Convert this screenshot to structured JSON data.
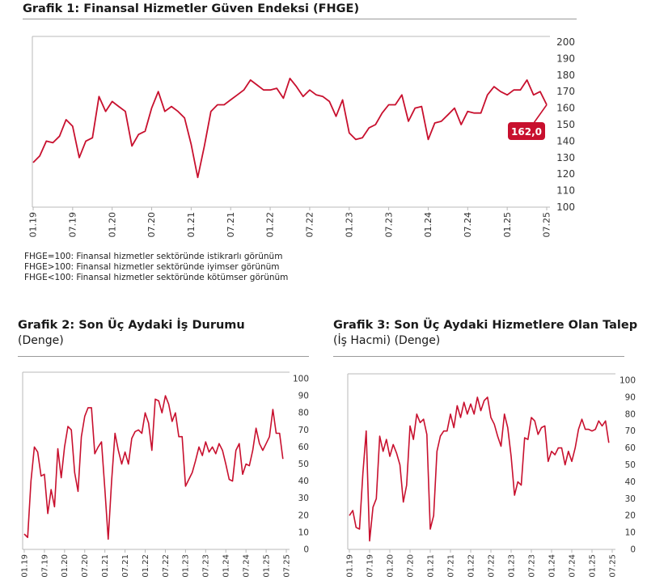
{
  "chart_data": [
    {
      "id": "fhge",
      "type": "line",
      "title": "Grafik 1: Finansal Hizmetler Güven Endeksi (FHGE)",
      "subtitle": "",
      "ylim": [
        100,
        200
      ],
      "yticks": [
        100,
        110,
        120,
        130,
        140,
        150,
        160,
        170,
        180,
        190,
        200
      ],
      "xtick_labels": [
        "01.19",
        "07.19",
        "01.20",
        "07.20",
        "01.21",
        "07.21",
        "01.22",
        "07.22",
        "01.23",
        "07.23",
        "01.24",
        "07.24",
        "01.25",
        "07.25"
      ],
      "x_period_months": 78,
      "grid": false,
      "line_color": "#c8102e",
      "series": [
        {
          "name": "",
          "values": [
            127,
            131,
            140,
            139,
            143,
            153,
            149,
            130,
            140,
            142,
            167,
            158,
            164,
            161,
            158,
            137,
            144,
            146,
            160,
            170,
            158,
            161,
            158,
            154,
            138,
            118,
            137,
            158,
            162,
            162,
            165,
            168,
            171,
            177,
            174,
            171,
            171,
            172,
            166,
            178,
            173,
            167,
            171,
            168,
            167,
            164,
            155,
            165,
            145,
            141,
            142,
            148,
            150,
            157,
            162,
            162,
            168,
            152,
            160,
            161,
            141,
            151,
            152,
            156,
            160,
            150,
            158,
            157,
            157,
            168,
            173,
            170,
            168,
            171,
            171,
            177,
            168,
            170,
            162
          ]
        }
      ],
      "last_value_label": "162,0",
      "notes": [
        "FHGE=100: Finansal hizmetler sektöründe istikrarlı görünüm",
        "FHGE>100: Finansal hizmetler sektöründe iyimser görünüm",
        "FHGE<100: Finansal hizmetler sektöründe kötümser görünüm"
      ]
    },
    {
      "id": "is-durumu",
      "type": "line",
      "title": "Grafik 2: Son Üç Aydaki İş Durumu",
      "subtitle": "(Denge)",
      "ylim": [
        0,
        100
      ],
      "yticks": [
        0,
        10,
        20,
        30,
        40,
        50,
        60,
        70,
        80,
        90,
        100
      ],
      "xtick_labels": [
        "01.19",
        "07.19",
        "01.20",
        "07.20",
        "01.21",
        "07.21",
        "01.22",
        "07.22",
        "01.23",
        "07.23",
        "01.24",
        "07.24",
        "01.25",
        "07.25"
      ],
      "x_period_months": 78,
      "grid": false,
      "line_color": "#c8102e",
      "series": [
        {
          "name": "",
          "values": [
            9,
            7,
            40,
            60,
            57,
            43,
            44,
            21,
            35,
            25,
            59,
            42,
            60,
            72,
            70,
            45,
            34,
            66,
            78,
            83,
            83,
            56,
            60,
            63,
            35,
            6,
            40,
            68,
            58,
            50,
            57,
            50,
            65,
            69,
            70,
            68,
            80,
            74,
            58,
            88,
            87,
            80,
            90,
            85,
            75,
            80,
            66,
            66,
            37,
            41,
            45,
            52,
            60,
            55,
            63,
            57,
            60,
            56,
            62,
            58,
            50,
            41,
            40,
            58,
            62,
            44,
            50,
            49,
            58,
            71,
            62,
            58,
            62,
            66,
            82,
            68,
            68,
            53
          ]
        }
      ]
    },
    {
      "id": "talep",
      "type": "line",
      "title": "Grafik 3: Son Üç Aydaki Hizmetlere Olan Talep",
      "subtitle": "(İş Hacmi) (Denge)",
      "ylim": [
        0,
        100
      ],
      "yticks": [
        0,
        10,
        20,
        30,
        40,
        50,
        60,
        70,
        80,
        90,
        100
      ],
      "xtick_labels": [
        "01.19",
        "07.19",
        "01.20",
        "07.20",
        "01.21",
        "07.21",
        "01.22",
        "07.22",
        "01.23",
        "07.23",
        "01.24",
        "07.24",
        "01.25",
        "07.25"
      ],
      "x_period_months": 78,
      "grid": false,
      "line_color": "#c8102e",
      "series": [
        {
          "name": "",
          "values": [
            20,
            23,
            13,
            12,
            45,
            70,
            5,
            25,
            30,
            67,
            58,
            65,
            55,
            62,
            57,
            50,
            28,
            38,
            73,
            65,
            80,
            75,
            77,
            68,
            12,
            20,
            58,
            67,
            70,
            70,
            80,
            72,
            85,
            78,
            87,
            80,
            86,
            80,
            90,
            82,
            88,
            90,
            78,
            74,
            67,
            61,
            80,
            72,
            55,
            32,
            40,
            38,
            66,
            65,
            78,
            76,
            68,
            72,
            73,
            52,
            58,
            56,
            60,
            60,
            50,
            58,
            52,
            60,
            71,
            77,
            71,
            71,
            70,
            71,
            76,
            73,
            76,
            63
          ]
        }
      ]
    }
  ]
}
